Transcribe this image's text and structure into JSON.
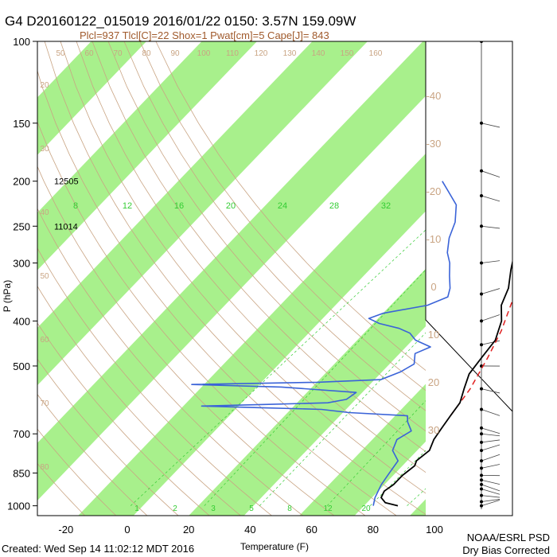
{
  "header": {
    "title": "G4 D20160122_015019 2016/01/22 0150:  3.57N 159.09W",
    "subtitle": "Plcl=937 Tlcl[C]=22 Shox=1 Pwat[cm]=5 Cape[J]= 843"
  },
  "footer": {
    "created": "Created: Wed Sep 14 11:02:12 MDT 2016",
    "credit_line1": "NOAA/ESRL PSD",
    "credit_line2": "Dry Bias Corrected"
  },
  "colors": {
    "band": "#a8f08c",
    "temperature": "#000000",
    "dewpoint": "#3a63d8",
    "parcel": "#e02020",
    "dry_adiabat": "#c9a483",
    "mixing_ratio": "#33cc33",
    "isotherm_label": "#c9a483",
    "barb": "#444444"
  },
  "chart_data": {
    "type": "skew-t",
    "xlabel": "Temperature (F)",
    "ylabel": "P (hPa)",
    "xlim": [
      -30,
      110
    ],
    "ylim": [
      1050,
      100
    ],
    "x_ticks": [
      -20,
      0,
      20,
      40,
      60,
      80,
      100
    ],
    "y_ticks": [
      100,
      150,
      200,
      250,
      300,
      400,
      500,
      700,
      850,
      1000
    ],
    "height_labels": [
      {
        "pressure": 200,
        "text": "12505"
      },
      {
        "pressure": 250,
        "text": "11014"
      }
    ],
    "mixing_ratio_labels_250hPa": [
      "8",
      "12",
      "16",
      "20",
      "24",
      "28",
      "32"
    ],
    "mixing_ratio_labels_1000hPa": [
      "1",
      "2",
      "3",
      "5",
      "8",
      "12",
      "20"
    ],
    "skewed_isotherm_labels_C": [
      "-40",
      "-30",
      "-20",
      "-10",
      "0",
      "10",
      "20",
      "30"
    ],
    "adiabat_labels_top": [
      "50",
      "60",
      "70",
      "80",
      "90",
      "100",
      "110",
      "120",
      "130",
      "140",
      "150",
      "160"
    ],
    "adiabat_labels_left": [
      "20",
      "30",
      "40",
      "50",
      "60",
      "70",
      "80"
    ],
    "temperature_profile": [
      {
        "p": 1000,
        "t": 85
      },
      {
        "p": 985,
        "t": 80
      },
      {
        "p": 960,
        "t": 77
      },
      {
        "p": 930,
        "t": 76
      },
      {
        "p": 900,
        "t": 77
      },
      {
        "p": 860,
        "t": 77
      },
      {
        "p": 820,
        "t": 78
      },
      {
        "p": 800,
        "t": 77
      },
      {
        "p": 760,
        "t": 78
      },
      {
        "p": 720,
        "t": 76
      },
      {
        "p": 680,
        "t": 75
      },
      {
        "p": 640,
        "t": 74
      },
      {
        "p": 600,
        "t": 73
      },
      {
        "p": 560,
        "t": 70
      },
      {
        "p": 520,
        "t": 67
      },
      {
        "p": 480,
        "t": 66
      },
      {
        "p": 440,
        "t": 65
      },
      {
        "p": 400,
        "t": 61
      },
      {
        "p": 370,
        "t": 56
      },
      {
        "p": 340,
        "t": 53
      },
      {
        "p": 310,
        "t": 48
      },
      {
        "p": 280,
        "t": 43
      },
      {
        "p": 250,
        "t": 38
      },
      {
        "p": 225,
        "t": 34
      },
      {
        "p": 200,
        "t": 30
      },
      {
        "p": 185,
        "t": 28
      },
      {
        "p": 175,
        "t": 27
      }
    ],
    "dewpoint_profile": [
      {
        "p": 1000,
        "t": 77
      },
      {
        "p": 960,
        "t": 75
      },
      {
        "p": 900,
        "t": 73
      },
      {
        "p": 850,
        "t": 72
      },
      {
        "p": 800,
        "t": 71
      },
      {
        "p": 760,
        "t": 66
      },
      {
        "p": 720,
        "t": 64
      },
      {
        "p": 690,
        "t": 66
      },
      {
        "p": 660,
        "t": 62
      },
      {
        "p": 640,
        "t": 60
      },
      {
        "p": 630,
        "t": 40
      },
      {
        "p": 620,
        "t": 30
      },
      {
        "p": 615,
        "t": 10
      },
      {
        "p": 610,
        "t": -10
      },
      {
        "p": 605,
        "t": 10
      },
      {
        "p": 600,
        "t": 30
      },
      {
        "p": 590,
        "t": 35
      },
      {
        "p": 570,
        "t": 36
      },
      {
        "p": 555,
        "t": 10
      },
      {
        "p": 548,
        "t": -20
      },
      {
        "p": 542,
        "t": 20
      },
      {
        "p": 535,
        "t": 40
      },
      {
        "p": 515,
        "t": 44
      },
      {
        "p": 495,
        "t": 46
      },
      {
        "p": 470,
        "t": 43
      },
      {
        "p": 455,
        "t": 46
      },
      {
        "p": 440,
        "t": 39
      },
      {
        "p": 425,
        "t": 35
      },
      {
        "p": 415,
        "t": 30
      },
      {
        "p": 405,
        "t": 22
      },
      {
        "p": 395,
        "t": 17
      },
      {
        "p": 385,
        "t": 20
      },
      {
        "p": 370,
        "t": 32
      },
      {
        "p": 355,
        "t": 36
      },
      {
        "p": 340,
        "t": 34
      },
      {
        "p": 320,
        "t": 30
      },
      {
        "p": 300,
        "t": 26
      },
      {
        "p": 285,
        "t": 22
      },
      {
        "p": 265,
        "t": 18
      },
      {
        "p": 245,
        "t": 15
      },
      {
        "p": 225,
        "t": 10
      },
      {
        "p": 210,
        "t": 3
      },
      {
        "p": 200,
        "t": -2
      }
    ],
    "parcel_profile": [
      {
        "p": 640,
        "t": 74
      },
      {
        "p": 560,
        "t": 72
      },
      {
        "p": 480,
        "t": 68
      },
      {
        "p": 420,
        "t": 64
      },
      {
        "p": 360,
        "t": 58
      },
      {
        "p": 300,
        "t": 52
      },
      {
        "p": 250,
        "t": 45
      },
      {
        "p": 215,
        "t": 40
      },
      {
        "p": 185,
        "t": 36
      },
      {
        "p": 175,
        "t": 35
      }
    ],
    "barb_pressures": [
      100,
      150,
      190,
      215,
      250,
      300,
      350,
      400,
      450,
      500,
      560,
      620,
      680,
      700,
      730,
      760,
      800,
      830,
      860,
      880,
      900,
      920,
      950,
      980,
      1000
    ]
  }
}
